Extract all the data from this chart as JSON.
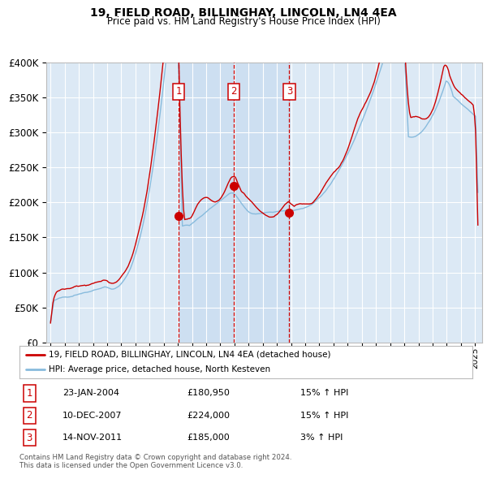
{
  "title": "19, FIELD ROAD, BILLINGHAY, LINCOLN, LN4 4EA",
  "subtitle": "Price paid vs. HM Land Registry's House Price Index (HPI)",
  "legend_line1": "19, FIELD ROAD, BILLINGHAY, LINCOLN, LN4 4EA (detached house)",
  "legend_line2": "HPI: Average price, detached house, North Kesteven",
  "transactions": [
    {
      "num": 1,
      "date": "23-JAN-2004",
      "x": 2004.06,
      "price": 180950,
      "pct": "15%",
      "dir": "↑"
    },
    {
      "num": 2,
      "date": "10-DEC-2007",
      "x": 2007.94,
      "price": 224000,
      "pct": "15%",
      "dir": "↑"
    },
    {
      "num": 3,
      "date": "14-NOV-2011",
      "x": 2011.87,
      "price": 185000,
      "pct": "3%",
      "dir": "↑"
    }
  ],
  "footnote1": "Contains HM Land Registry data © Crown copyright and database right 2024.",
  "footnote2": "This data is licensed under the Open Government Licence v3.0.",
  "ylim": [
    0,
    400000
  ],
  "xlim_start": 1994.7,
  "xlim_end": 2025.5,
  "bg_color": "#dce9f5",
  "hpi_color": "#88bbdd",
  "price_color": "#cc0000",
  "vline_color": "#cc0000",
  "dot_color": "#cc0000",
  "grid_color": "#ffffff",
  "highlight_color": "#c8dcf0"
}
